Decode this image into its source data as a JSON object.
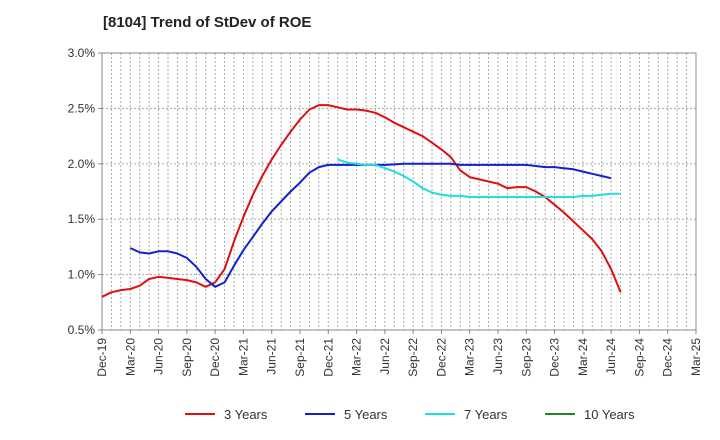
{
  "chart_data": {
    "type": "line",
    "title": "[8104]  Trend of StDev of ROE",
    "xlabel": "",
    "ylabel": "",
    "x_ticks": [
      "Dec-19",
      "Mar-20",
      "Jun-20",
      "Sep-20",
      "Dec-20",
      "Mar-21",
      "Jun-21",
      "Sep-21",
      "Dec-21",
      "Mar-22",
      "Jun-22",
      "Sep-22",
      "Dec-22",
      "Mar-23",
      "Jun-23",
      "Sep-23",
      "Dec-23",
      "Mar-24",
      "Jun-24",
      "Sep-24",
      "Dec-24",
      "Mar-25"
    ],
    "y_ticks": [
      "0.5%",
      "1.0%",
      "1.5%",
      "2.0%",
      "2.5%",
      "3.0%"
    ],
    "ylim": [
      0.5,
      3.0
    ],
    "y_unit": "%",
    "grid": true,
    "legend_position": "bottom",
    "series": [
      {
        "name": "3 Years",
        "color": "#dd1111",
        "points": [
          [
            0,
            0.8
          ],
          [
            1,
            0.84
          ],
          [
            2,
            0.86
          ],
          [
            3,
            0.87
          ],
          [
            4,
            0.9
          ],
          [
            5,
            0.96
          ],
          [
            6,
            0.98
          ],
          [
            7,
            0.97
          ],
          [
            8,
            0.96
          ],
          [
            9,
            0.95
          ],
          [
            10,
            0.93
          ],
          [
            11,
            0.89
          ],
          [
            12,
            0.93
          ],
          [
            13,
            1.05
          ],
          [
            14,
            1.3
          ],
          [
            15,
            1.52
          ],
          [
            16,
            1.72
          ],
          [
            17,
            1.89
          ],
          [
            18,
            2.04
          ],
          [
            19,
            2.17
          ],
          [
            20,
            2.29
          ],
          [
            21,
            2.4
          ],
          [
            22,
            2.49
          ],
          [
            23,
            2.53
          ],
          [
            24,
            2.53
          ],
          [
            25,
            2.51
          ],
          [
            26,
            2.49
          ],
          [
            27,
            2.49
          ],
          [
            28,
            2.48
          ],
          [
            29,
            2.46
          ],
          [
            30,
            2.42
          ],
          [
            31,
            2.37
          ],
          [
            32,
            2.33
          ],
          [
            33,
            2.29
          ],
          [
            34,
            2.25
          ],
          [
            35,
            2.19
          ],
          [
            36,
            2.13
          ],
          [
            37,
            2.06
          ],
          [
            38,
            1.94
          ],
          [
            39,
            1.88
          ],
          [
            40,
            1.86
          ],
          [
            41,
            1.84
          ],
          [
            42,
            1.82
          ],
          [
            43,
            1.78
          ],
          [
            44,
            1.79
          ],
          [
            45,
            1.79
          ],
          [
            46,
            1.75
          ],
          [
            47,
            1.7
          ],
          [
            48,
            1.63
          ],
          [
            49,
            1.56
          ],
          [
            50,
            1.48
          ],
          [
            51,
            1.4
          ],
          [
            52,
            1.32
          ],
          [
            53,
            1.21
          ],
          [
            54,
            1.05
          ],
          [
            55,
            0.84
          ]
        ]
      },
      {
        "name": "5 Years",
        "color": "#1122cc",
        "points": [
          [
            3,
            1.24
          ],
          [
            4,
            1.2
          ],
          [
            5,
            1.19
          ],
          [
            6,
            1.21
          ],
          [
            7,
            1.21
          ],
          [
            8,
            1.19
          ],
          [
            9,
            1.15
          ],
          [
            10,
            1.07
          ],
          [
            11,
            0.96
          ],
          [
            12,
            0.89
          ],
          [
            13,
            0.93
          ],
          [
            14,
            1.08
          ],
          [
            15,
            1.22
          ],
          [
            16,
            1.34
          ],
          [
            17,
            1.46
          ],
          [
            18,
            1.57
          ],
          [
            19,
            1.66
          ],
          [
            20,
            1.75
          ],
          [
            21,
            1.83
          ],
          [
            22,
            1.92
          ],
          [
            23,
            1.97
          ],
          [
            24,
            1.99
          ],
          [
            25,
            1.99
          ],
          [
            26,
            1.99
          ],
          [
            27,
            1.99
          ],
          [
            28,
            1.99
          ],
          [
            29,
            1.99
          ],
          [
            30,
            1.99
          ],
          [
            31,
            1.995
          ],
          [
            32,
            2.0
          ],
          [
            33,
            2.0
          ],
          [
            34,
            2.0
          ],
          [
            35,
            2.0
          ],
          [
            36,
            2.0
          ],
          [
            37,
            2.0
          ],
          [
            38,
            1.99
          ],
          [
            39,
            1.99
          ],
          [
            40,
            1.99
          ],
          [
            41,
            1.99
          ],
          [
            42,
            1.99
          ],
          [
            43,
            1.99
          ],
          [
            44,
            1.99
          ],
          [
            45,
            1.99
          ],
          [
            46,
            1.98
          ],
          [
            47,
            1.97
          ],
          [
            48,
            1.97
          ],
          [
            49,
            1.96
          ],
          [
            50,
            1.95
          ],
          [
            51,
            1.93
          ],
          [
            52,
            1.91
          ],
          [
            53,
            1.89
          ],
          [
            54,
            1.87
          ]
        ]
      },
      {
        "name": "7 Years",
        "color": "#22dddd",
        "points": [
          [
            25,
            2.04
          ],
          [
            26,
            2.01
          ],
          [
            27,
            2.0
          ],
          [
            28,
            1.99
          ],
          [
            29,
            1.99
          ],
          [
            30,
            1.96
          ],
          [
            31,
            1.93
          ],
          [
            32,
            1.89
          ],
          [
            33,
            1.84
          ],
          [
            34,
            1.78
          ],
          [
            35,
            1.74
          ],
          [
            36,
            1.72
          ],
          [
            37,
            1.71
          ],
          [
            38,
            1.71
          ],
          [
            39,
            1.7
          ],
          [
            40,
            1.7
          ],
          [
            41,
            1.7
          ],
          [
            42,
            1.7
          ],
          [
            43,
            1.7
          ],
          [
            44,
            1.7
          ],
          [
            45,
            1.7
          ],
          [
            46,
            1.7
          ],
          [
            47,
            1.7
          ],
          [
            48,
            1.7
          ],
          [
            49,
            1.7
          ],
          [
            50,
            1.7
          ],
          [
            51,
            1.71
          ],
          [
            52,
            1.71
          ],
          [
            53,
            1.72
          ],
          [
            54,
            1.73
          ],
          [
            55,
            1.73
          ]
        ]
      },
      {
        "name": "10 Years",
        "color": "#228822",
        "points": []
      }
    ]
  }
}
